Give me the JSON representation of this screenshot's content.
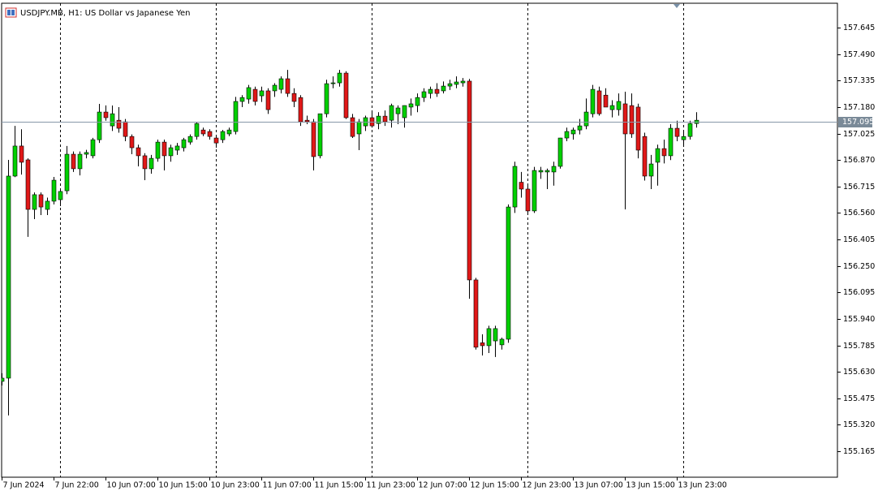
{
  "chart_data": {
    "type": "candlestick",
    "title": "USDJPY.MB, H1:  US Dollar vs Japanese Yen",
    "categories": [
      "7 Jun 2024",
      null,
      null,
      null,
      null,
      null,
      null,
      null,
      "7 Jun 22:00",
      null,
      null,
      null,
      null,
      null,
      null,
      null,
      "10 Jun 07:00",
      null,
      null,
      null,
      null,
      null,
      null,
      null,
      "10 Jun 15:00",
      null,
      null,
      null,
      null,
      null,
      null,
      null,
      "10 Jun 23:00",
      null,
      null,
      null,
      null,
      null,
      null,
      null,
      "11 Jun 07:00",
      null,
      null,
      null,
      null,
      null,
      null,
      null,
      "11 Jun 15:00",
      null,
      null,
      null,
      null,
      null,
      null,
      null,
      "11 Jun 23:00",
      null,
      null,
      null,
      null,
      null,
      null,
      null,
      "12 Jun 07:00",
      null,
      null,
      null,
      null,
      null,
      null,
      null,
      "12 Jun 15:00",
      null,
      null,
      null,
      null,
      null,
      null,
      null,
      "12 Jun 23:00",
      null,
      null,
      null,
      null,
      null,
      null,
      null,
      "13 Jun 07:00",
      null,
      null,
      null,
      null,
      null,
      null,
      null,
      "13 Jun 15:00",
      null,
      null,
      null,
      null,
      null,
      null,
      null,
      "13 Jun 23:00",
      null,
      null,
      null
    ],
    "open": [
      155.574,
      155.593,
      156.776,
      156.952,
      156.871,
      156.581,
      156.667,
      156.581,
      156.629,
      156.638,
      156.69,
      156.904,
      156.819,
      156.904,
      156.895,
      156.989,
      157.151,
      157.07,
      157.103,
      157.094,
      157.008,
      156.942,
      156.895,
      156.819,
      156.88,
      156.975,
      156.895,
      156.928,
      156.942,
      156.975,
      157.008,
      157.046,
      157.037,
      156.999,
      156.989,
      157.023,
      157.037,
      157.213,
      157.227,
      157.284,
      157.246,
      157.275,
      157.275,
      157.284,
      157.346,
      157.26,
      157.236,
      157.103,
      157.094,
      156.895,
      157.141,
      157.317,
      157.322,
      157.379,
      157.118,
      157.023,
      157.07,
      157.118,
      157.084,
      157.127,
      157.103,
      157.141,
      157.118,
      157.18,
      157.189,
      157.236,
      157.26,
      157.284,
      157.275,
      157.303,
      157.313,
      157.322,
      157.332,
      156.168,
      155.8,
      155.783,
      155.811,
      155.788,
      155.821,
      156.595,
      156.74,
      156.7,
      156.572,
      156.8,
      156.8,
      156.8,
      156.833,
      156.999,
      157.023,
      157.046,
      157.07,
      157.141,
      157.275,
      157.25,
      157.165,
      157.165,
      157.199,
      157.189,
      157.18,
      157.008,
      156.776,
      156.857,
      156.937,
      156.895,
      157.056,
      156.989,
      157.008,
      157.084
    ],
    "high": [
      155.622,
      156.871,
      157.07,
      157.05,
      156.88,
      156.68,
      156.68,
      156.65,
      156.771,
      156.7,
      156.952,
      156.92,
      156.92,
      156.93,
      157.0,
      157.199,
      157.19,
      157.189,
      157.18,
      157.11,
      157.02,
      156.96,
      156.91,
      156.9,
      156.99,
      156.99,
      156.96,
      156.97,
      157.0,
      157.02,
      157.09,
      157.06,
      157.05,
      157.01,
      157.046,
      157.06,
      157.24,
      157.25,
      157.31,
      157.3,
      157.3,
      157.29,
      157.32,
      157.36,
      157.398,
      157.29,
      157.25,
      157.13,
      157.11,
      157.14,
      157.34,
      157.36,
      157.398,
      157.39,
      157.14,
      157.11,
      157.13,
      157.15,
      157.15,
      157.16,
      157.2,
      157.19,
      157.19,
      157.23,
      157.26,
      157.29,
      157.3,
      157.32,
      157.33,
      157.34,
      157.36,
      157.35,
      157.345,
      156.18,
      155.85,
      155.9,
      155.9,
      155.83,
      156.61,
      156.86,
      156.8,
      156.72,
      156.83,
      156.83,
      156.82,
      156.86,
      157.0,
      157.06,
      157.06,
      157.11,
      157.23,
      157.31,
      157.3,
      157.29,
      157.22,
      157.26,
      157.27,
      157.26,
      157.2,
      157.03,
      156.9,
      156.96,
      156.99,
      157.08,
      157.1,
      157.04,
      157.1,
      157.15
    ],
    "low": [
      155.55,
      155.375,
      156.77,
      156.785,
      156.42,
      156.524,
      156.548,
      156.548,
      156.61,
      156.6,
      156.67,
      156.8,
      156.78,
      156.88,
      156.88,
      156.97,
      157.1,
      157.04,
      157.03,
      156.98,
      156.904,
      156.833,
      156.752,
      156.79,
      156.86,
      156.809,
      156.86,
      156.9,
      156.92,
      156.96,
      156.99,
      157.01,
      156.99,
      156.942,
      156.97,
      157.01,
      157.02,
      157.18,
      157.2,
      157.19,
      157.21,
      157.14,
      157.24,
      157.26,
      157.24,
      157.18,
      157.07,
      157.08,
      156.809,
      156.88,
      157.12,
      157.29,
      157.3,
      157.11,
      156.999,
      156.928,
      157.04,
      157.06,
      157.05,
      157.07,
      157.06,
      157.08,
      157.06,
      157.13,
      157.15,
      157.21,
      157.23,
      157.24,
      157.26,
      157.28,
      157.29,
      157.3,
      156.058,
      155.76,
      155.726,
      155.74,
      155.717,
      155.76,
      155.8,
      156.56,
      156.65,
      156.56,
      156.56,
      156.76,
      156.7,
      156.72,
      156.82,
      156.98,
      156.99,
      157.02,
      157.05,
      157.12,
      157.13,
      157.18,
      157.12,
      157.13,
      156.581,
      157.0,
      156.88,
      156.75,
      156.7,
      156.72,
      156.85,
      156.87,
      156.98,
      156.96,
      156.99,
      157.06
    ],
    "close": [
      155.593,
      156.776,
      156.952,
      156.857,
      156.581,
      156.667,
      156.595,
      156.629,
      156.752,
      156.686,
      156.904,
      156.819,
      156.904,
      156.914,
      156.989,
      157.151,
      157.118,
      157.141,
      157.056,
      157.008,
      156.942,
      156.895,
      156.819,
      156.88,
      156.975,
      156.895,
      156.942,
      156.952,
      156.989,
      157.008,
      157.084,
      157.023,
      157.008,
      156.97,
      157.037,
      157.046,
      157.213,
      157.236,
      157.294,
      157.213,
      157.275,
      157.165,
      157.308,
      157.346,
      157.26,
      157.213,
      157.094,
      157.094,
      156.89,
      157.141,
      157.317,
      157.322,
      157.379,
      157.118,
      157.008,
      157.094,
      157.118,
      157.07,
      157.127,
      157.094,
      157.189,
      157.175,
      157.189,
      157.199,
      157.236,
      157.27,
      157.284,
      157.26,
      157.303,
      157.317,
      157.327,
      157.332,
      156.168,
      155.774,
      155.783,
      155.883,
      155.883,
      155.821,
      156.595,
      156.833,
      156.7,
      156.572,
      156.809,
      156.809,
      156.809,
      156.833,
      156.999,
      157.037,
      157.046,
      157.07,
      157.151,
      157.284,
      157.141,
      157.18,
      157.189,
      157.213,
      157.023,
      157.023,
      156.928,
      156.776,
      156.847,
      156.937,
      156.895,
      157.056,
      157.008,
      157.008,
      157.084,
      157.103
    ],
    "up_color": "#00d000",
    "down_color": "#e01818",
    "current_price": 157.095,
    "ylim": [
      155.013,
      157.788
    ],
    "yticks": [
      157.645,
      {
        "value": 157.49,
        "label": "157.490"
      },
      157.335,
      {
        "value": 157.18,
        "label": "157.180"
      },
      157.025,
      {
        "value": 156.87,
        "label": "156.870"
      },
      156.715,
      {
        "value": 156.56,
        "label": "156.560"
      },
      156.405,
      {
        "value": 156.25,
        "label": "156.250"
      },
      156.095,
      {
        "value": 155.94,
        "label": "155.940"
      },
      155.785,
      {
        "value": 155.63,
        "label": "155.630"
      },
      155.475,
      {
        "value": 155.32,
        "label": "155.320"
      },
      155.165
    ]
  }
}
